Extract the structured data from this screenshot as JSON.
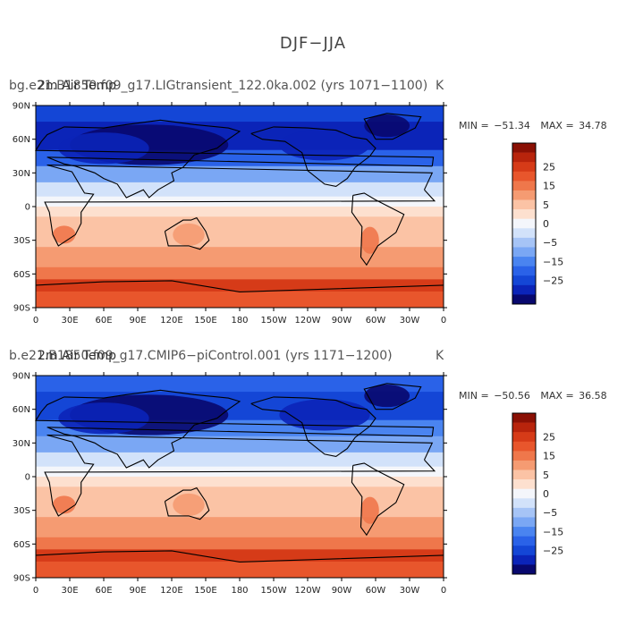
{
  "figure_title": "DJF−JJA",
  "panels": [
    {
      "title_main": "bg.e21.B1850.f09_g17.LIGtransient_122.0ka.002 (yrs 1071−1100)",
      "title_overlay": "2m Air Temp",
      "title_units": "K",
      "min_label": "MIN =",
      "min_value": "−51.34",
      "max_label": "MAX =",
      "max_value": "34.78"
    },
    {
      "title_main": "b.e21.B1850.f09_g17.CMIP6−piControl.001 (yrs 1171−1200)",
      "title_overlay": "2m Air Temp",
      "title_units": "K",
      "min_label": "MIN =",
      "min_value": "−50.56",
      "max_label": "MAX =",
      "max_value": "36.58"
    }
  ],
  "x_ticks": [
    "0",
    "30E",
    "60E",
    "90E",
    "120E",
    "150E",
    "180",
    "150W",
    "120W",
    "90W",
    "60W",
    "30W",
    "0"
  ],
  "y_ticks": [
    "90N",
    "60N",
    "30N",
    "0",
    "30S",
    "60S",
    "90S"
  ],
  "colorbar_labels": [
    "25",
    "15",
    "5",
    "0",
    "−5",
    "−15",
    "−25"
  ],
  "colors": {
    "palette": [
      "#08086e",
      "#0b24b8",
      "#1446d6",
      "#2a62e8",
      "#4a84f0",
      "#7aa7f4",
      "#a6c4f6",
      "#d2e2fa",
      "#f4f6fb",
      "#fde0cf",
      "#fbc3a5",
      "#f59b72",
      "#ef774b",
      "#e8562c",
      "#d63b18",
      "#b8240c",
      "#8a1004"
    ],
    "land": "#000000",
    "frame": "#000000"
  }
}
